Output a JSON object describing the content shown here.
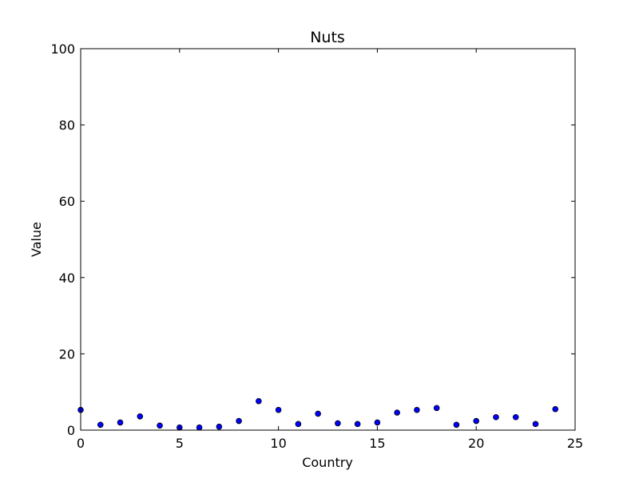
{
  "chart_data": {
    "type": "scatter",
    "title": "Nuts",
    "xlabel": "Country",
    "ylabel": "Value",
    "xlim": [
      0,
      25
    ],
    "ylim": [
      0,
      100
    ],
    "xticks": [
      "0",
      "5",
      "10",
      "15",
      "20",
      "25"
    ],
    "yticks": [
      "0",
      "20",
      "40",
      "60",
      "80",
      "100"
    ],
    "grid": false,
    "marker_color": "#0000ff",
    "marker_edge_color": "#000000",
    "x": [
      0,
      1,
      2,
      3,
      4,
      5,
      6,
      7,
      8,
      9,
      10,
      11,
      12,
      13,
      14,
      15,
      16,
      17,
      18,
      19,
      20,
      21,
      22,
      23,
      24
    ],
    "y": [
      5.3,
      1.4,
      2.0,
      3.6,
      1.2,
      0.7,
      0.7,
      0.9,
      2.4,
      7.6,
      5.3,
      1.6,
      4.3,
      1.8,
      1.6,
      2.0,
      4.6,
      5.3,
      5.8,
      1.4,
      2.4,
      3.4,
      3.4,
      1.6,
      5.5
    ]
  }
}
